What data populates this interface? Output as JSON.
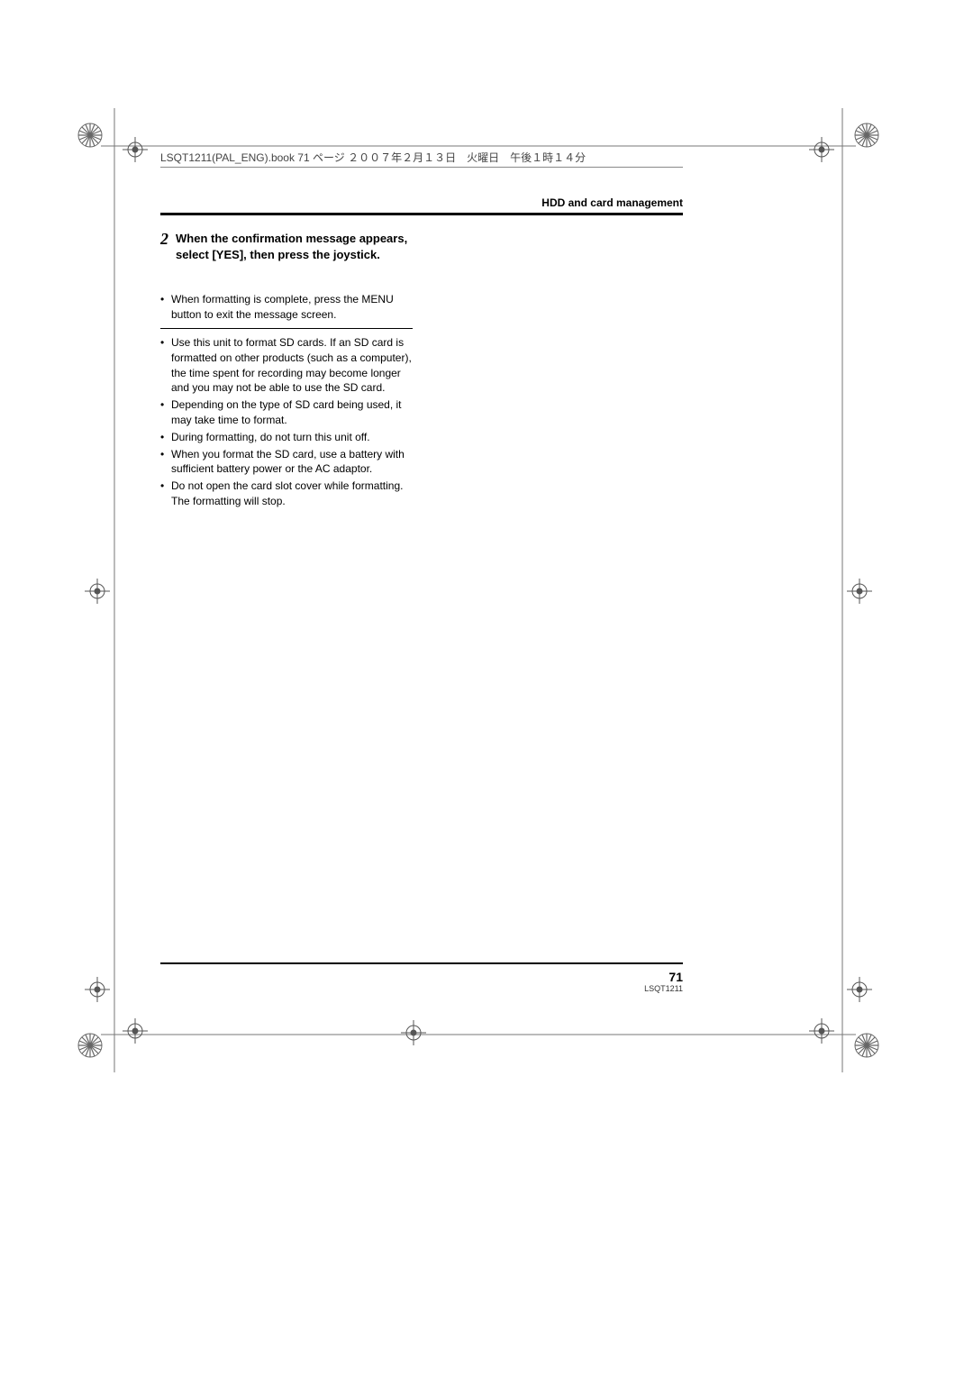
{
  "print_header": "LSQT1211(PAL_ENG).book  71 ページ  ２００７年２月１３日　火曜日　午後１時１４分",
  "section_header": "HDD and card management",
  "step": {
    "number": "2",
    "instruction": "When the confirmation message appears, select [YES], then press the joystick."
  },
  "bullets_before_divider": [
    "When formatting is complete, press the MENU button to exit the message screen."
  ],
  "bullets_after_divider": [
    "Use this unit to format SD cards. If an SD card is formatted on other products (such as a computer), the time spent for recording may become longer and you may not be able to use the SD card.",
    "Depending on the type of SD card being used, it may take time to format.",
    "During formatting, do not turn this unit off.",
    "When you format the SD card, use a battery with sufficient battery power or the AC adaptor.",
    "Do not open the card slot cover while formatting. The formatting will stop."
  ],
  "page_number": "71",
  "doc_code": "LSQT1211",
  "colors": {
    "text": "#000000",
    "rule": "#000000",
    "header_text": "#444444"
  }
}
